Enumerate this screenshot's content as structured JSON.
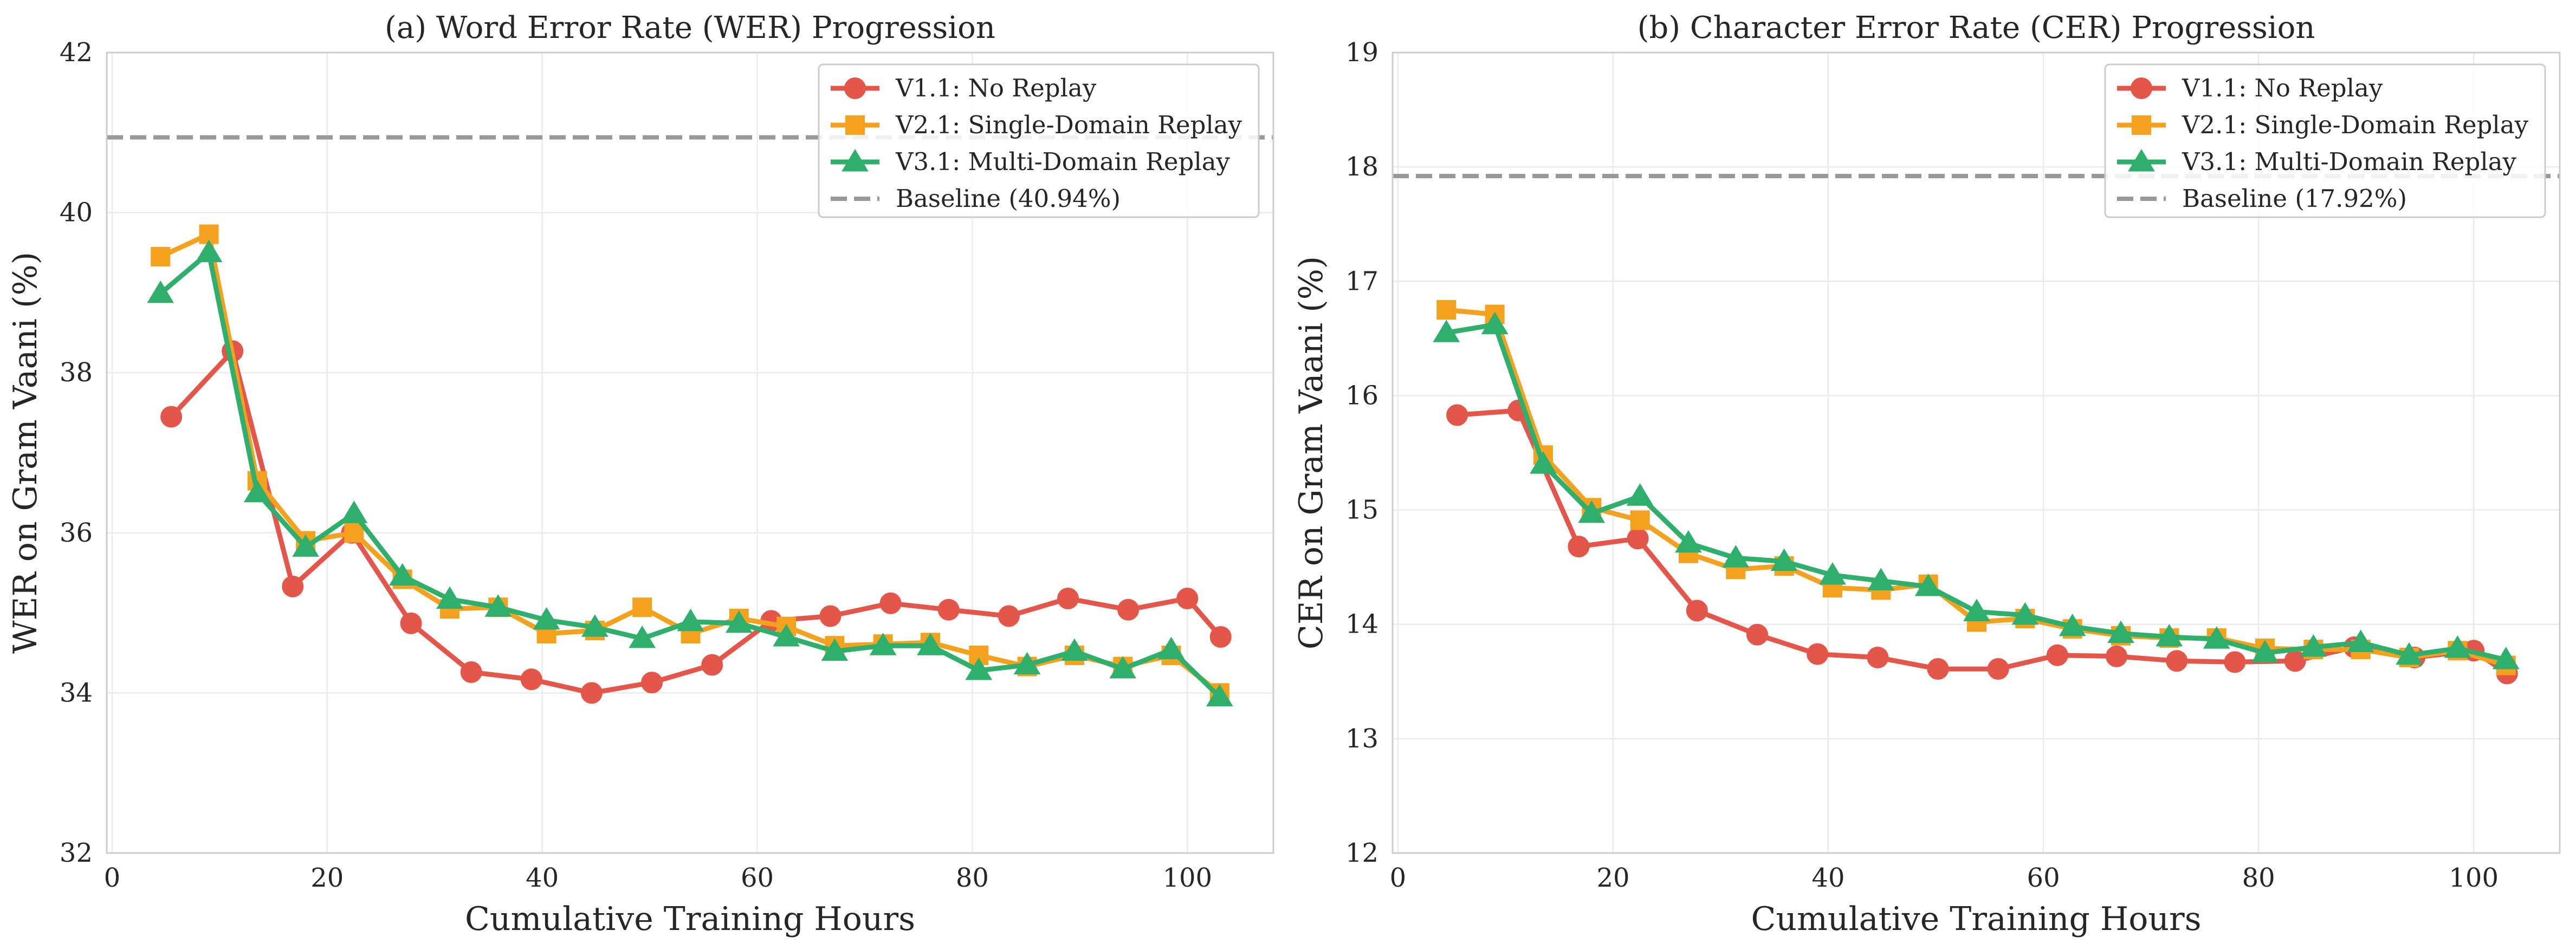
{
  "chart_data": [
    {
      "type": "line",
      "title": "(a) Word Error Rate (WER) Progression",
      "xlabel": "Cumulative Training Hours",
      "ylabel": "WER on Gram Vaani (%)",
      "xlim": [
        -0.5,
        108
      ],
      "ylim": [
        32,
        42
      ],
      "xticks": [
        0,
        20,
        40,
        60,
        80,
        100
      ],
      "yticks": [
        32,
        34,
        36,
        38,
        40,
        42
      ],
      "grid": true,
      "legend_position": "top-right",
      "baseline": {
        "name": "Baseline (40.94%)",
        "value": 40.94,
        "color": "#999999"
      },
      "series": [
        {
          "name": "V1.1: No Replay",
          "color": "#e45649",
          "marker": "circle",
          "x": [
            5.5,
            11.2,
            16.8,
            22.3,
            27.8,
            33.4,
            39.0,
            44.6,
            50.2,
            55.8,
            61.3,
            66.8,
            72.4,
            77.8,
            83.4,
            88.9,
            94.5,
            100.0,
            103.1
          ],
          "y": [
            37.45,
            38.27,
            35.33,
            36.0,
            34.87,
            34.26,
            34.17,
            34.0,
            34.13,
            34.35,
            34.9,
            34.96,
            35.12,
            35.04,
            34.96,
            35.18,
            35.04,
            35.18,
            34.7
          ]
        },
        {
          "name": "V2.1: Single-Domain Replay",
          "color": "#f4a21e",
          "marker": "square",
          "x": [
            4.5,
            9.0,
            13.5,
            18.0,
            22.5,
            27.0,
            31.4,
            35.9,
            40.4,
            44.9,
            49.3,
            53.8,
            58.3,
            62.7,
            67.2,
            71.7,
            76.1,
            80.6,
            85.1,
            89.5,
            94.0,
            98.5,
            103.0
          ],
          "y": [
            39.45,
            39.73,
            36.65,
            35.9,
            36.0,
            35.42,
            35.05,
            35.07,
            34.74,
            34.78,
            35.07,
            34.74,
            34.93,
            34.83,
            34.59,
            34.61,
            34.63,
            34.47,
            34.33,
            34.47,
            34.33,
            34.47,
            34.0
          ]
        },
        {
          "name": "V3.1: Multi-Domain Replay",
          "color": "#2eaf6b",
          "marker": "triangle",
          "x": [
            4.5,
            9.0,
            13.5,
            18.0,
            22.5,
            27.0,
            31.4,
            35.9,
            40.4,
            44.9,
            49.3,
            53.8,
            58.3,
            62.7,
            67.2,
            71.7,
            76.1,
            80.6,
            85.1,
            89.5,
            94.0,
            98.5,
            103.0
          ],
          "y": [
            38.99,
            39.5,
            36.5,
            35.82,
            36.24,
            35.46,
            35.17,
            35.07,
            34.91,
            34.82,
            34.68,
            34.89,
            34.87,
            34.7,
            34.52,
            34.59,
            34.59,
            34.28,
            34.35,
            34.52,
            34.3,
            34.54,
            33.95
          ]
        }
      ]
    },
    {
      "type": "line",
      "title": "(b) Character Error Rate (CER) Progression",
      "xlabel": "Cumulative Training Hours",
      "ylabel": "CER on Gram Vaani (%)",
      "xlim": [
        -0.5,
        108
      ],
      "ylim": [
        12,
        19
      ],
      "xticks": [
        0,
        20,
        40,
        60,
        80,
        100
      ],
      "yticks": [
        12,
        13,
        14,
        15,
        16,
        17,
        18,
        19
      ],
      "grid": true,
      "legend_position": "top-right",
      "baseline": {
        "name": "Baseline (17.92%)",
        "value": 17.92,
        "color": "#999999"
      },
      "series": [
        {
          "name": "V1.1: No Replay",
          "color": "#e45649",
          "marker": "circle",
          "x": [
            5.5,
            11.2,
            16.8,
            22.3,
            27.8,
            33.4,
            39.0,
            44.6,
            50.2,
            55.8,
            61.3,
            66.8,
            72.4,
            77.8,
            83.4,
            88.9,
            94.5,
            100.0,
            103.1
          ],
          "y": [
            15.83,
            15.87,
            14.68,
            14.75,
            14.12,
            13.91,
            13.74,
            13.71,
            13.61,
            13.61,
            13.73,
            13.72,
            13.68,
            13.67,
            13.68,
            13.8,
            13.71,
            13.77,
            13.57
          ]
        },
        {
          "name": "V2.1: Single-Domain Replay",
          "color": "#f4a21e",
          "marker": "square",
          "x": [
            4.5,
            9.0,
            13.5,
            18.0,
            22.5,
            27.0,
            31.4,
            35.9,
            40.4,
            44.9,
            49.3,
            53.8,
            58.3,
            62.7,
            67.2,
            71.7,
            76.1,
            80.6,
            85.1,
            89.5,
            94.0,
            98.5,
            103.0
          ],
          "y": [
            16.75,
            16.71,
            15.48,
            15.02,
            14.91,
            14.62,
            14.48,
            14.51,
            14.32,
            14.3,
            14.35,
            14.02,
            14.05,
            13.96,
            13.9,
            13.88,
            13.88,
            13.79,
            13.78,
            13.78,
            13.71,
            13.77,
            13.64
          ]
        },
        {
          "name": "V3.1: Multi-Domain Replay",
          "color": "#2eaf6b",
          "marker": "triangle",
          "x": [
            4.5,
            9.0,
            13.5,
            18.0,
            22.5,
            27.0,
            31.4,
            35.9,
            40.4,
            44.9,
            49.3,
            53.8,
            58.3,
            62.7,
            67.2,
            71.7,
            76.1,
            80.6,
            85.1,
            89.5,
            94.0,
            98.5,
            103.0
          ],
          "y": [
            16.55,
            16.62,
            15.4,
            14.97,
            15.12,
            14.71,
            14.58,
            14.55,
            14.43,
            14.38,
            14.33,
            14.11,
            14.08,
            13.98,
            13.92,
            13.89,
            13.87,
            13.75,
            13.8,
            13.84,
            13.73,
            13.79,
            13.69
          ]
        }
      ]
    }
  ]
}
